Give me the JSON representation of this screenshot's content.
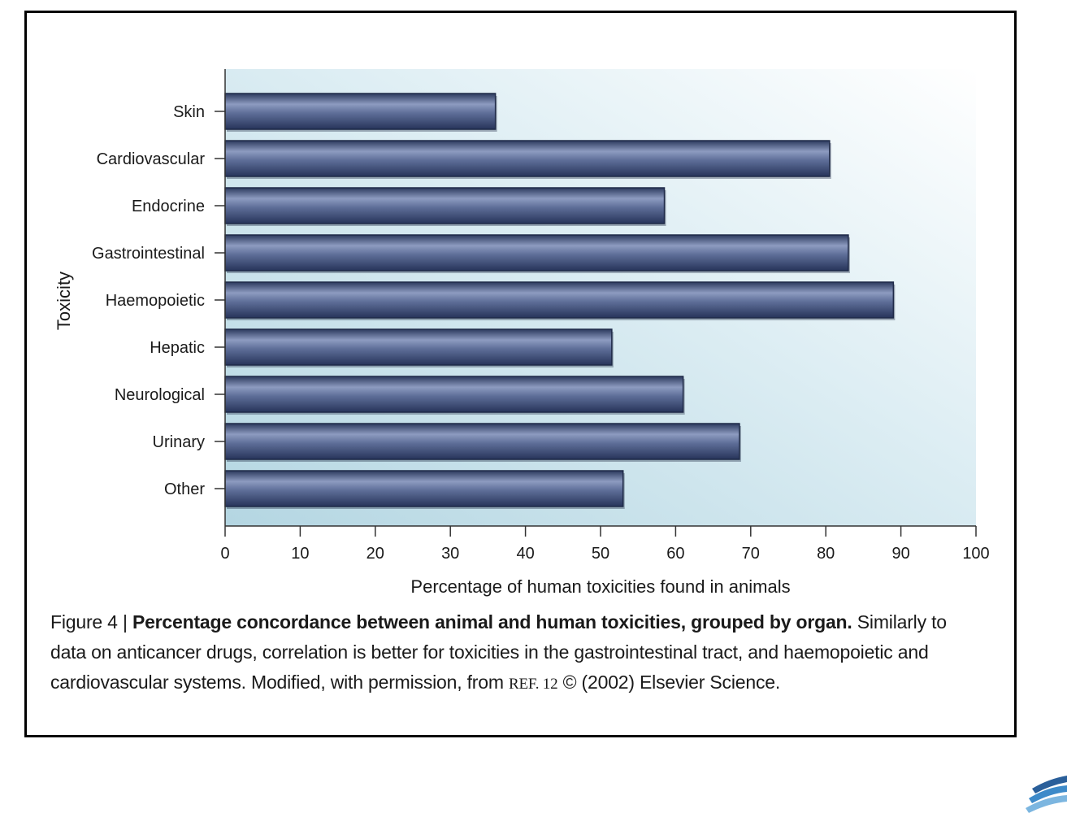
{
  "chart_data": {
    "type": "bar",
    "orientation": "horizontal",
    "categories": [
      "Skin",
      "Cardiovascular",
      "Endocrine",
      "Gastrointestinal",
      "Haemopoietic",
      "Hepatic",
      "Neurological",
      "Urinary",
      "Other"
    ],
    "values": [
      36,
      80.5,
      58.5,
      83,
      89,
      51.5,
      61,
      68.5,
      53
    ],
    "xlabel": "Percentage of human toxicities found in animals",
    "ylabel": "Toxicity",
    "xlim": [
      0,
      100
    ],
    "xticks": [
      0,
      10,
      20,
      30,
      40,
      50,
      60,
      70,
      80,
      90,
      100
    ],
    "grid": false,
    "bar_color": "#4a5a85"
  },
  "caption": {
    "figure_label": "Figure 4 | ",
    "title": "Percentage concordance between animal and human toxicities, grouped by organ.",
    "body": " Similarly to data on anticancer drugs, correlation is better for toxicities in the gastrointestinal tract, and haemopoietic and cardiovascular systems. Modified, with permission, from ",
    "reference": "REF. 12",
    "copyright": " © (2002) Elsevier Science."
  }
}
